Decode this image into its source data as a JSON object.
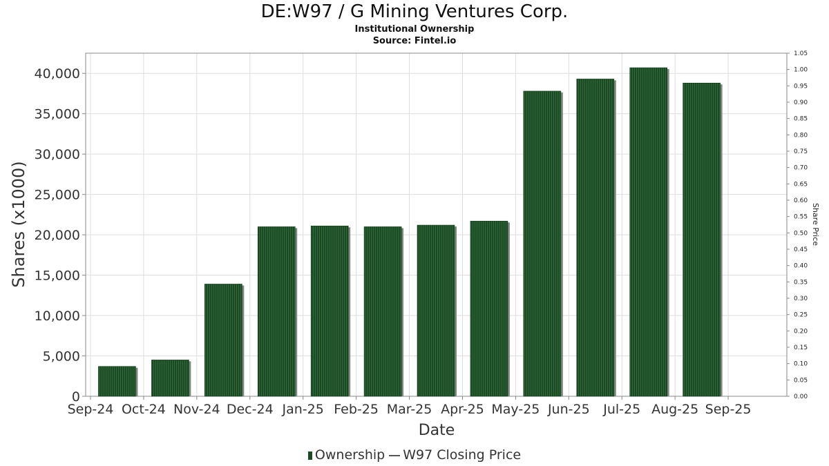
{
  "chart": {
    "title": "DE:W97 / G Mining Ventures Corp.",
    "subtitle_1": "Institutional Ownership",
    "subtitle_2": "Source: Fintel.io"
  },
  "legend": {
    "ownership": "Ownership",
    "price": "W97 Closing Price"
  },
  "colors": {
    "bar": "#1c4a24",
    "bar_stripe": "#2f6a38",
    "bar_shadow": "#7d8a7f",
    "grid": "#dddddd",
    "axis": "#888888"
  },
  "chart_data": {
    "type": "bar",
    "title": "DE:W97 / G Mining Ventures Corp.",
    "xlabel": "Date",
    "ylabel": "Shares (x1000)",
    "y2label": "Share Price",
    "x_tick_labels": [
      "Sep-24",
      "Oct-24",
      "Nov-24",
      "Dec-24",
      "Jan-25",
      "Feb-25",
      "Mar-25",
      "Apr-25",
      "May-25",
      "Jun-25",
      "Jul-25",
      "Aug-25",
      "Sep-25"
    ],
    "categories": [
      "Oct-24",
      "Nov-24",
      "Dec-24",
      "Jan-25",
      "Feb-25",
      "Mar-25",
      "Apr-25",
      "May-25",
      "Jun-25",
      "Jul-25",
      "Aug-25",
      "Sep-25"
    ],
    "series": [
      {
        "name": "Ownership",
        "values": [
          3700,
          4500,
          13900,
          21000,
          21100,
          21000,
          21200,
          21700,
          37800,
          39300,
          40700,
          38800
        ]
      }
    ],
    "ylim": [
      0,
      42500
    ],
    "y_ticks": [
      0,
      5000,
      10000,
      15000,
      20000,
      25000,
      30000,
      35000,
      40000
    ],
    "y_tick_labels": [
      "0",
      "5,000",
      "10,000",
      "15,000",
      "20,000",
      "25,000",
      "30,000",
      "35,000",
      "40,000"
    ],
    "y2lim": [
      0,
      1.05
    ],
    "y2_tick_labels": [
      "0.00",
      "0.05",
      "0.10",
      "0.15",
      "0.20",
      "0.25",
      "0.30",
      "0.35",
      "0.40",
      "0.45",
      "0.50",
      "0.55",
      "0.60",
      "0.65",
      "0.70",
      "0.75",
      "0.80",
      "0.85",
      "0.90",
      "0.95",
      "1.00",
      "1.05"
    ],
    "grid": true,
    "legend_position": "bottom"
  }
}
